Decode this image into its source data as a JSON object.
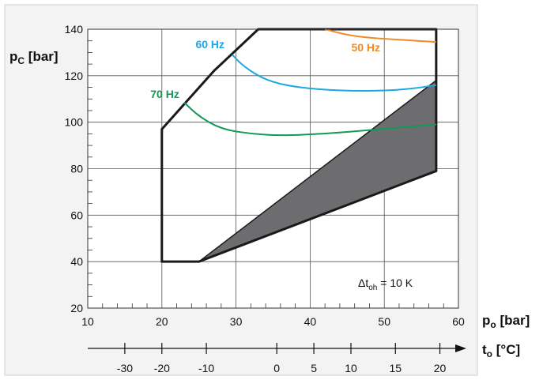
{
  "chart_data": {
    "type": "line",
    "title": "",
    "ylabel": {
      "main": "p",
      "sub": "C",
      "rest": " [bar]"
    },
    "xlabel": {
      "main": "p",
      "sub": "o",
      "rest": " [bar]"
    },
    "temp_axis_label": {
      "main": "t",
      "sub": "o",
      "rest": " [°C]"
    },
    "annotation": {
      "prefix": "Δt",
      "sub": "oh",
      "rest": " = 10 K"
    },
    "xlim": [
      10,
      60
    ],
    "ylim": [
      20,
      140
    ],
    "x_ticks": [
      10,
      20,
      30,
      40,
      50,
      60
    ],
    "y_ticks": [
      20,
      40,
      60,
      80,
      100,
      120,
      140
    ],
    "temp_ticks": [
      {
        "label": "-30",
        "p": 15
      },
      {
        "label": "-20",
        "p": 20
      },
      {
        "label": "-10",
        "p": 26
      },
      {
        "label": "0",
        "p": 35.5
      },
      {
        "label": "5",
        "p": 40.5
      },
      {
        "label": "10",
        "p": 45.5
      },
      {
        "label": "15",
        "p": 51.5
      },
      {
        "label": "20",
        "p": 57.5
      }
    ],
    "grid": true,
    "colors": {
      "boundary": "#1a1a1a",
      "shaded": "#6d6d70",
      "grid": "#555555",
      "background": "#f3f3f3"
    },
    "envelope": [
      [
        20,
        40
      ],
      [
        20,
        97
      ],
      [
        27,
        122
      ],
      [
        33,
        140
      ],
      [
        57,
        140
      ],
      [
        57,
        79
      ],
      [
        25,
        40
      ]
    ],
    "shaded_region": [
      [
        25,
        40
      ],
      [
        57,
        118
      ],
      [
        57,
        79
      ]
    ],
    "series": [
      {
        "name": "50 Hz",
        "color": "#f08a24",
        "points": [
          [
            42,
            140
          ],
          [
            45,
            137.5
          ],
          [
            48,
            136.3
          ],
          [
            52,
            135.5
          ],
          [
            57,
            134.5
          ]
        ]
      },
      {
        "name": "60 Hz",
        "color": "#1ca8e3",
        "points": [
          [
            29.5,
            129
          ],
          [
            31,
            124
          ],
          [
            34,
            118
          ],
          [
            38,
            115
          ],
          [
            44,
            113.5
          ],
          [
            50,
            113.5
          ],
          [
            54,
            114.5
          ],
          [
            57,
            116
          ]
        ]
      },
      {
        "name": "70 Hz",
        "color": "#119955",
        "points": [
          [
            23,
            108.5
          ],
          [
            25,
            102.5
          ],
          [
            28,
            97
          ],
          [
            32,
            95
          ],
          [
            36,
            94.2
          ],
          [
            42,
            95
          ],
          [
            48,
            96.6
          ],
          [
            54,
            98.2
          ],
          [
            57,
            99
          ]
        ]
      }
    ]
  }
}
